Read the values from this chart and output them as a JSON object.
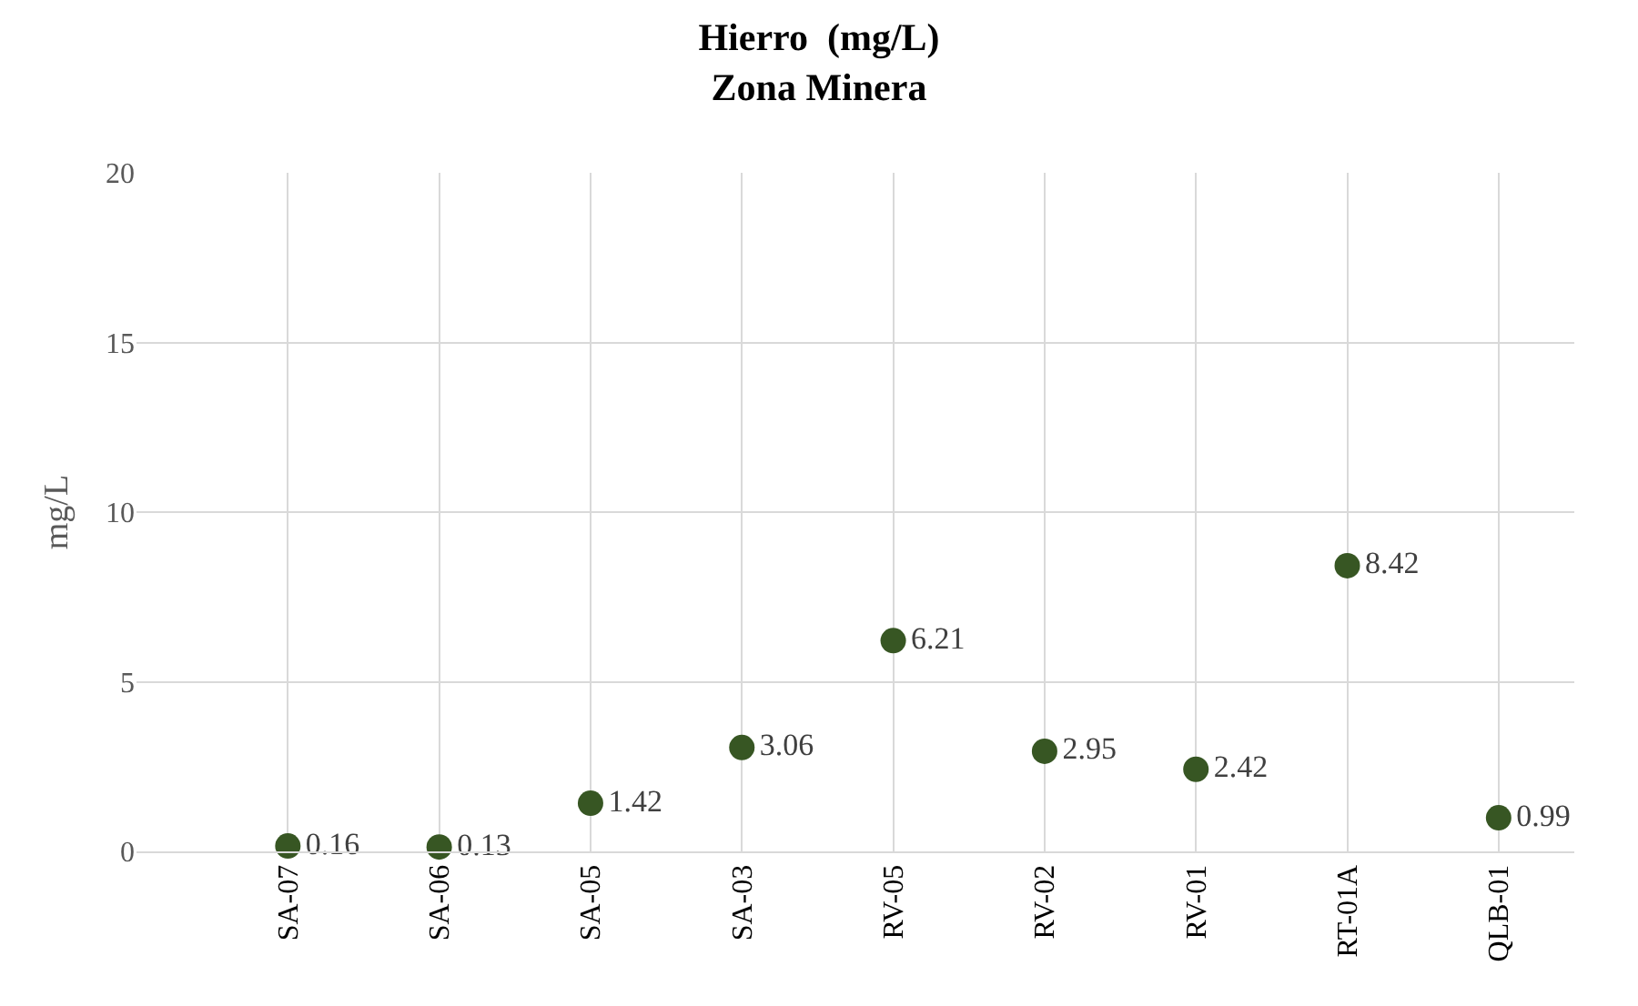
{
  "chart_data": {
    "type": "scatter",
    "title": "Hierro  (mg/L)\nZona Minera",
    "ylabel": "mg/L",
    "categories": [
      "SA-07",
      "SA-06",
      "SA-05",
      "SA-03",
      "RV-05",
      "RV-02",
      "RV-01",
      "RT-01A",
      "QLB-01"
    ],
    "series": [
      {
        "color": "#375623",
        "values": [
          0.16,
          0.13,
          1.42,
          3.06,
          6.21,
          2.95,
          2.42,
          8.42,
          0.99
        ]
      }
    ],
    "ylim": [
      0,
      20
    ],
    "yticks": [
      0,
      5,
      10,
      15,
      20
    ],
    "grid": true,
    "marker": "circle",
    "data_labels": true
  }
}
